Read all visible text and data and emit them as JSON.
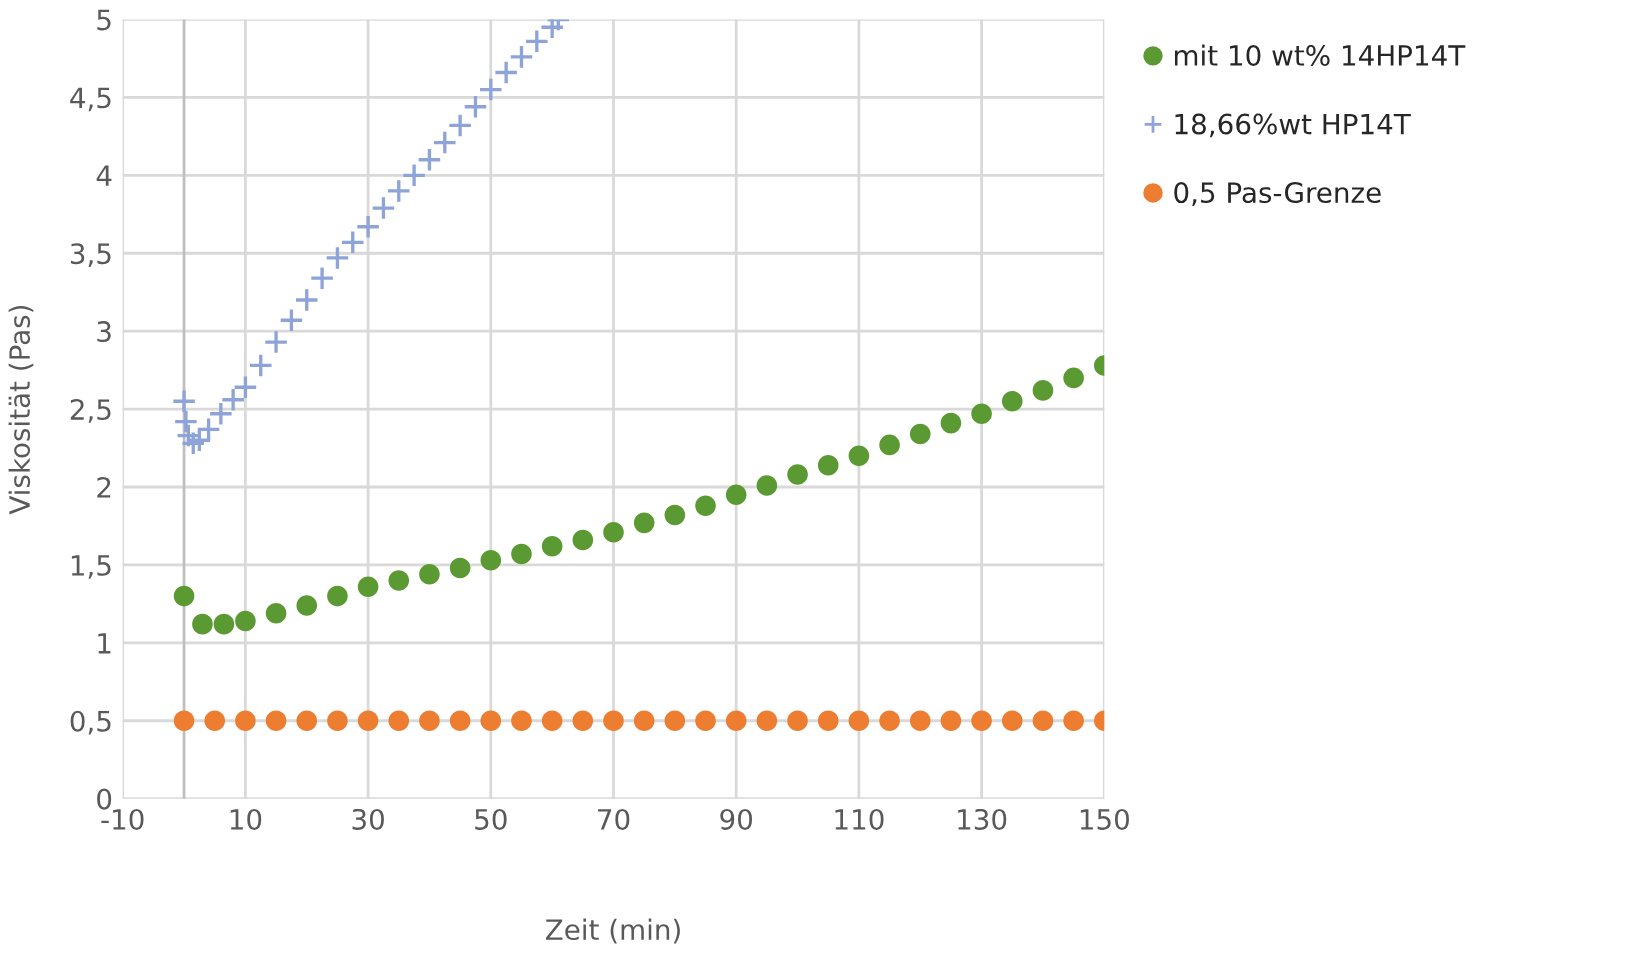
{
  "chart_data": {
    "type": "scatter",
    "xlabel": "Zeit (min)",
    "ylabel": "Viskosität (Pas)",
    "xlim": [
      -10,
      150
    ],
    "xticks": [
      -10,
      10,
      30,
      50,
      70,
      90,
      110,
      130,
      150
    ],
    "ylim": [
      0,
      5
    ],
    "yticks": [
      0,
      {
        "value": 0.5,
        "label": "0,5"
      },
      1,
      {
        "value": 1.5,
        "label": "1,5"
      },
      2,
      {
        "value": 2.5,
        "label": "2,5"
      },
      3,
      {
        "value": 3.5,
        "label": "3,5"
      },
      4,
      {
        "value": 4.5,
        "label": "4,5"
      },
      5
    ],
    "grid": true,
    "legend": "top right",
    "series": [
      {
        "name": "mit 10 wt% 14HP14T",
        "color": "#5b9a32",
        "marker": "circle",
        "x": [
          0,
          3,
          6.5,
          10,
          15,
          20,
          25,
          30,
          35,
          40,
          45,
          50,
          55,
          60,
          65,
          70,
          75,
          80,
          85,
          90,
          95,
          100,
          105,
          110,
          115,
          120,
          125,
          130,
          135,
          140,
          145,
          150
        ],
        "values": [
          1.3,
          1.12,
          1.12,
          1.14,
          1.19,
          1.24,
          1.3,
          1.36,
          1.4,
          1.44,
          1.48,
          1.53,
          1.57,
          1.62,
          1.66,
          1.71,
          1.77,
          1.82,
          1.88,
          1.95,
          2.01,
          2.08,
          2.14,
          2.2,
          2.27,
          2.34,
          2.41,
          2.47,
          2.55,
          2.62,
          2.7,
          2.78
        ]
      },
      {
        "name": "18,66%wt HP14T",
        "color": "#8ea3d8",
        "marker": "cross",
        "x": [
          0,
          0.3,
          0.7,
          1.5,
          2.5,
          4,
          6,
          8,
          10,
          12.5,
          15,
          17.5,
          20,
          22.5,
          25,
          27.5,
          30,
          32.5,
          35,
          37.5,
          40,
          42.5,
          45,
          47.5,
          50,
          52.5,
          55,
          57.5,
          60,
          61
        ],
        "values": [
          2.55,
          2.42,
          2.33,
          2.28,
          2.3,
          2.37,
          2.47,
          2.56,
          2.64,
          2.78,
          2.93,
          3.07,
          3.2,
          3.34,
          3.47,
          3.57,
          3.67,
          3.79,
          3.9,
          4.0,
          4.1,
          4.21,
          4.32,
          4.44,
          4.55,
          4.66,
          4.76,
          4.86,
          4.95,
          5.0
        ]
      },
      {
        "name": "0,5 Pas-Grenze",
        "color": "#ed7d31",
        "marker": "circle",
        "x": [
          0,
          5,
          10,
          15,
          20,
          25,
          30,
          35,
          40,
          45,
          50,
          55,
          60,
          65,
          70,
          75,
          80,
          85,
          90,
          95,
          100,
          105,
          110,
          115,
          120,
          125,
          130,
          135,
          140,
          145,
          150
        ],
        "values": [
          0.5,
          0.5,
          0.5,
          0.5,
          0.5,
          0.5,
          0.5,
          0.5,
          0.5,
          0.5,
          0.5,
          0.5,
          0.5,
          0.5,
          0.5,
          0.5,
          0.5,
          0.5,
          0.5,
          0.5,
          0.5,
          0.5,
          0.5,
          0.5,
          0.5,
          0.5,
          0.5,
          0.5,
          0.5,
          0.5,
          0.5
        ]
      }
    ]
  }
}
